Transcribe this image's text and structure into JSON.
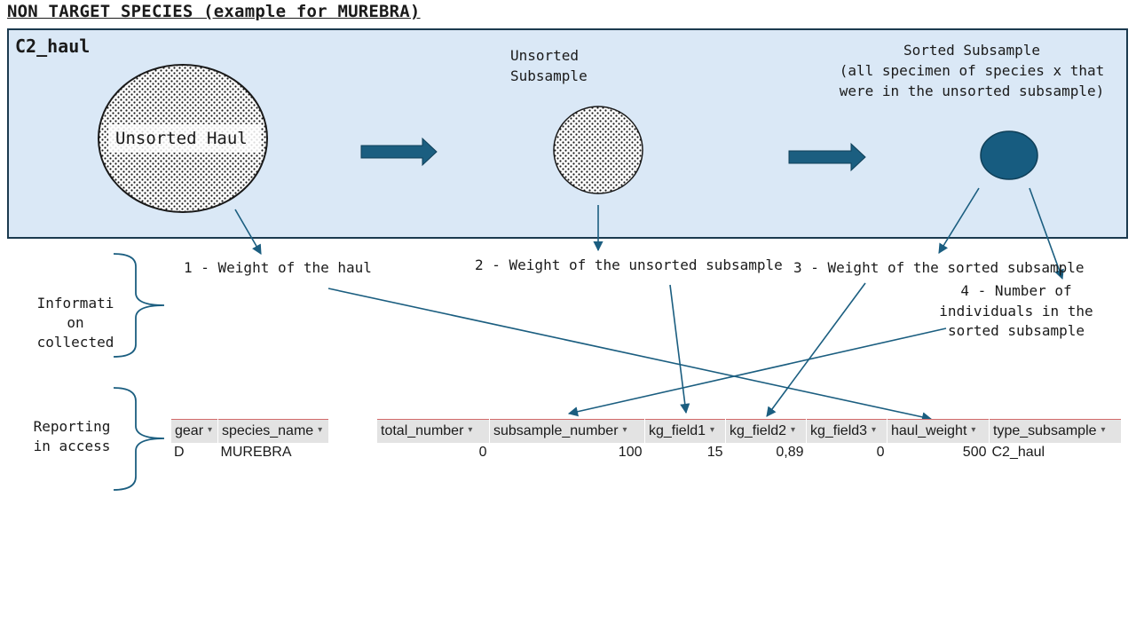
{
  "title": "NON TARGET SPECIES (example for MUREBRA)",
  "panel": {
    "label": "C2_haul",
    "haul_circle_label": "Unsorted Haul",
    "unsorted_subsample_label": [
      "Unsorted",
      "Subsample"
    ],
    "sorted_subsample_label": [
      "Sorted Subsample",
      "(all specimen of species x that",
      "were in the unsorted subsample)"
    ]
  },
  "info": {
    "side_label": [
      "Informati",
      "on",
      "collected"
    ],
    "item1": "1 - Weight of the haul",
    "item2": "2 - Weight of the unsorted subsample",
    "item3": "3 - Weight of the sorted subsample",
    "item4": [
      "4 - Number of",
      "individuals in the",
      "sorted subsample"
    ]
  },
  "reporting": {
    "side_label": [
      "Reporting",
      "in access"
    ],
    "table1": {
      "headers": [
        "gear",
        "species_name"
      ],
      "row": [
        "D",
        "MUREBRA"
      ]
    },
    "table2": {
      "headers": [
        "total_number",
        "subsample_number",
        "kg_field1",
        "kg_field2",
        "kg_field3",
        "haul_weight",
        "type_subsample"
      ],
      "row": [
        "0",
        "100",
        "15",
        "0,89",
        "0",
        "500",
        "C2_haul"
      ]
    }
  },
  "colors": {
    "panel_bg": "#dae8f6",
    "dark_teal": "#1b5e80",
    "sorted_circle": "#175c80"
  }
}
